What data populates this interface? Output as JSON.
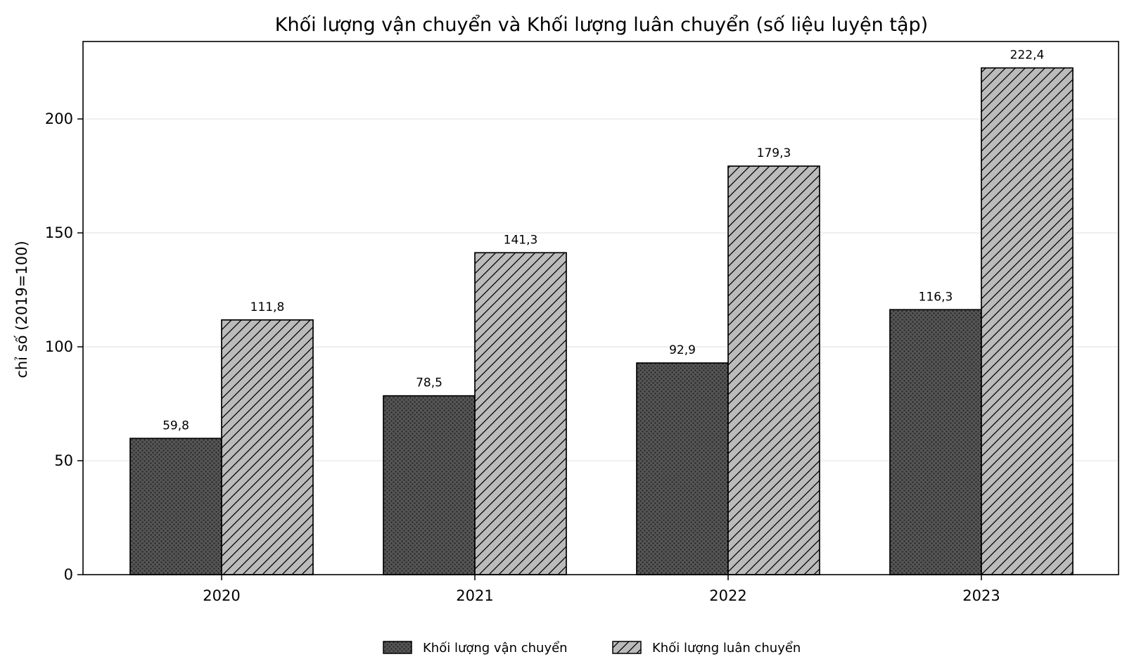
{
  "chart_data": {
    "type": "bar",
    "title": "Khối lượng vận chuyển và Khối lượng luân chuyển (số liệu luyện tập)",
    "xlabel": "",
    "ylabel": "chỉ số (2019=100)",
    "categories": [
      "2020",
      "2021",
      "2022",
      "2023"
    ],
    "series": [
      {
        "name": "Khối lượng vận chuyển",
        "values": [
          59.8,
          78.5,
          92.9,
          116.3
        ],
        "labels": [
          "59,8",
          "78,5",
          "92,9",
          "116,3"
        ],
        "color": "#555555",
        "pattern": "dots"
      },
      {
        "name": "Khối lượng luân chuyển",
        "values": [
          111.8,
          141.3,
          179.3,
          222.4
        ],
        "labels": [
          "111,8",
          "141,3",
          "179,3",
          "222,4"
        ],
        "color": "#bbbbbb",
        "pattern": "diagonal-hatch"
      }
    ],
    "ylim": [
      0,
      234
    ],
    "yticks": [
      0,
      50,
      100,
      150,
      200
    ],
    "grid": "horizontal",
    "legend_position": "bottom-center"
  }
}
